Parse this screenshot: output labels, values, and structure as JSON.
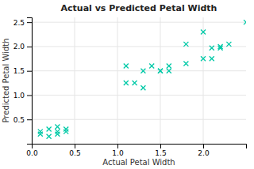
{
  "chart_data": {
    "type": "scatter",
    "title": "Actual vs Predicted Petal Width",
    "xlabel": "Actual Petal Width",
    "ylabel": "Predicted Petal Width",
    "x": [
      0.1,
      0.1,
      0.2,
      0.2,
      0.3,
      0.3,
      0.3,
      0.4,
      0.4,
      1.1,
      1.1,
      1.2,
      1.3,
      1.3,
      1.4,
      1.5,
      1.5,
      1.6,
      1.6,
      1.8,
      1.8,
      2.0,
      2.0,
      2.1,
      2.1,
      2.2,
      2.2,
      2.3,
      2.5
    ],
    "values": [
      0.25,
      0.2,
      0.3,
      0.15,
      0.35,
      0.2,
      0.25,
      0.25,
      0.3,
      1.25,
      1.6,
      1.25,
      1.5,
      1.15,
      1.6,
      1.5,
      1.5,
      1.6,
      1.5,
      1.65,
      2.05,
      1.75,
      2.3,
      1.75,
      1.97,
      2.0,
      1.97,
      2.05,
      2.5
    ],
    "color": "#00c9a7",
    "marker": "x",
    "xlim": [
      0.0,
      2.5
    ],
    "ylim": [
      0.0,
      2.6
    ],
    "xticks": [
      {
        "value": 0,
        "label": "0.0"
      },
      0.5,
      {
        "value": 1,
        "label": "1.0"
      },
      1.5,
      {
        "value": 2,
        "label": "2.0"
      }
    ],
    "yticks": [
      0.5,
      {
        "value": 1,
        "label": "1.0"
      },
      1.5,
      {
        "value": 2,
        "label": "2.0"
      },
      2.5
    ],
    "grid": true
  }
}
